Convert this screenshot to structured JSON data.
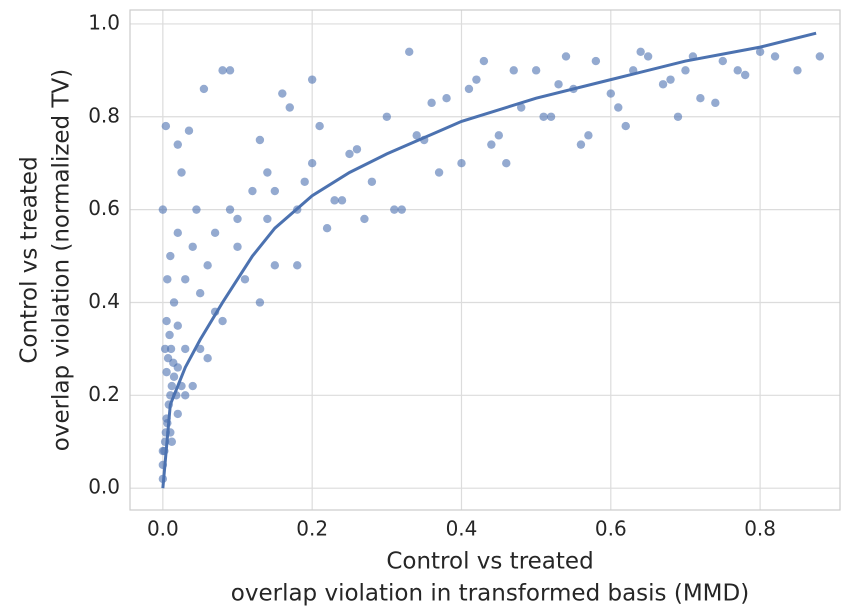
{
  "chart_data": {
    "type": "scatter",
    "xlabel": [
      "Control vs treated",
      "overlap violation in transformed basis (MMD)"
    ],
    "ylabel": [
      "Control vs treated",
      "overlap violation (normalized TV)"
    ],
    "xlim": [
      -0.044,
      0.907
    ],
    "ylim": [
      -0.047,
      1.03
    ],
    "xticks": [
      {
        "value": 0,
        "label": "0.0"
      },
      0.2,
      0.4,
      0.6,
      0.8
    ],
    "yticks": [
      {
        "value": 0,
        "label": "0.0"
      },
      0.2,
      0.4,
      0.6,
      0.8,
      {
        "value": 1,
        "label": "1.0"
      }
    ],
    "grid": true,
    "series": [
      {
        "type": "scatter",
        "color": "#4c72b0",
        "x": [
          0.0,
          0.0,
          0.002,
          0.003,
          0.004,
          0.005,
          0.006,
          0.008,
          0.01,
          0.012,
          0.015,
          0.018,
          0.02,
          0.003,
          0.005,
          0.007,
          0.009,
          0.011,
          0.014,
          0.02,
          0.025,
          0.03,
          0.0,
          0.004,
          0.006,
          0.01,
          0.015,
          0.02,
          0.03,
          0.04,
          0.05,
          0.06,
          0.02,
          0.025,
          0.035,
          0.045,
          0.055,
          0.07,
          0.08,
          0.09,
          0.1,
          0.12,
          0.13,
          0.14,
          0.15,
          0.16,
          0.18,
          0.2,
          0.22,
          0.17,
          0.19,
          0.21,
          0.23,
          0.25,
          0.27,
          0.3,
          0.32,
          0.35,
          0.38,
          0.4,
          0.42,
          0.45,
          0.48,
          0.5,
          0.52,
          0.55,
          0.58,
          0.6,
          0.62,
          0.65,
          0.68,
          0.7,
          0.72,
          0.75,
          0.78,
          0.8,
          0.82,
          0.85,
          0.88,
          0.0,
          0.005,
          0.01,
          0.02,
          0.03,
          0.05,
          0.07,
          0.09,
          0.11,
          0.13,
          0.15,
          0.18,
          0.2,
          0.24,
          0.28,
          0.31,
          0.34,
          0.37,
          0.41,
          0.44,
          0.47,
          0.51,
          0.54,
          0.57,
          0.61,
          0.64,
          0.67,
          0.71,
          0.74,
          0.77,
          0.26,
          0.33,
          0.36,
          0.43,
          0.46,
          0.53,
          0.56,
          0.63,
          0.69,
          0.012,
          0.04,
          0.08,
          0.1,
          0.14,
          0.06
        ],
        "values": [
          0.02,
          0.05,
          0.08,
          0.1,
          0.12,
          0.15,
          0.14,
          0.18,
          0.2,
          0.22,
          0.24,
          0.2,
          0.26,
          0.3,
          0.25,
          0.28,
          0.33,
          0.3,
          0.27,
          0.35,
          0.22,
          0.3,
          0.6,
          0.78,
          0.45,
          0.5,
          0.4,
          0.55,
          0.45,
          0.52,
          0.42,
          0.48,
          0.74,
          0.68,
          0.77,
          0.6,
          0.86,
          0.55,
          0.9,
          0.6,
          0.52,
          0.64,
          0.75,
          0.58,
          0.48,
          0.85,
          0.6,
          0.7,
          0.56,
          0.82,
          0.66,
          0.78,
          0.62,
          0.72,
          0.58,
          0.8,
          0.6,
          0.75,
          0.84,
          0.7,
          0.88,
          0.76,
          0.82,
          0.9,
          0.8,
          0.86,
          0.92,
          0.85,
          0.78,
          0.93,
          0.88,
          0.9,
          0.84,
          0.92,
          0.89,
          0.94,
          0.93,
          0.9,
          0.93,
          0.08,
          0.36,
          0.12,
          0.16,
          0.2,
          0.3,
          0.38,
          0.9,
          0.45,
          0.4,
          0.64,
          0.48,
          0.88,
          0.62,
          0.66,
          0.6,
          0.76,
          0.68,
          0.86,
          0.74,
          0.9,
          0.8,
          0.93,
          0.76,
          0.82,
          0.94,
          0.87,
          0.93,
          0.83,
          0.9,
          0.73,
          0.94,
          0.83,
          0.92,
          0.7,
          0.87,
          0.74,
          0.9,
          0.8,
          0.1,
          0.22,
          0.36,
          0.58,
          0.68,
          0.28
        ]
      },
      {
        "type": "line",
        "color": "#4c72b0",
        "x": [
          0,
          0.01,
          0.03,
          0.05,
          0.08,
          0.12,
          0.15,
          0.2,
          0.25,
          0.3,
          0.4,
          0.5,
          0.6,
          0.7,
          0.8,
          0.875
        ],
        "values": [
          0,
          0.18,
          0.26,
          0.32,
          0.4,
          0.5,
          0.56,
          0.63,
          0.68,
          0.72,
          0.79,
          0.84,
          0.88,
          0.92,
          0.95,
          0.98
        ]
      }
    ]
  }
}
